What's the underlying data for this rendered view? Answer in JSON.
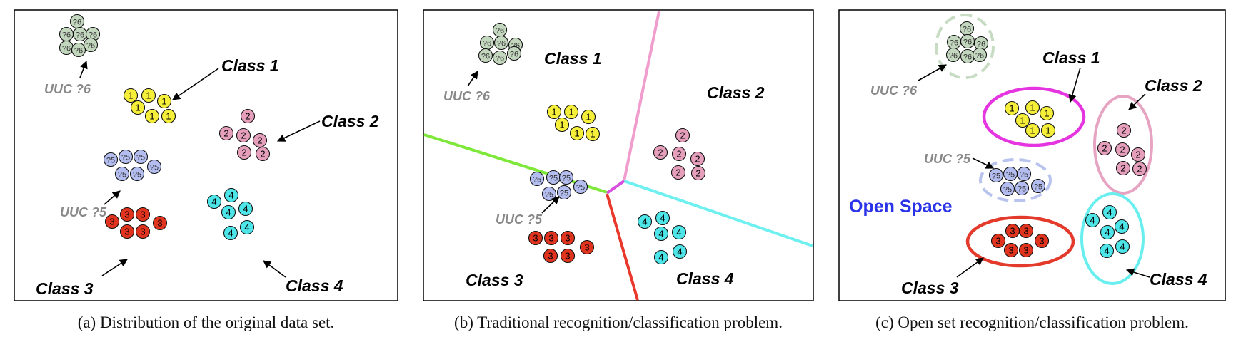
{
  "panels": [
    {
      "id": "a",
      "caption": "(a) Distribution of the original data set.",
      "labels": {
        "class1": "Class 1",
        "class2": "Class 2",
        "class3": "Class 3",
        "class4": "Class 4",
        "uuc6": "UUC ?6",
        "uuc5": "UUC ?5"
      }
    },
    {
      "id": "b",
      "caption": "(b) Traditional recognition/classification problem.",
      "labels": {
        "class1": "Class 1",
        "class2": "Class 2",
        "class3": "Class 3",
        "class4": "Class 4",
        "uuc6": "UUC ?6",
        "uuc5": "UUC ?5"
      }
    },
    {
      "id": "c",
      "caption": "(c) Open set recognition/classification problem.",
      "labels": {
        "class1": "Class 1",
        "class2": "Class 2",
        "class3": "Class 3",
        "class4": "Class 4",
        "uuc6": "UUC ?6",
        "uuc5": "UUC ?5",
        "open_space": "Open Space"
      }
    }
  ],
  "node_labels": {
    "c1": "1",
    "c2": "2",
    "c3": "3",
    "c4": "4",
    "u5": "?5",
    "u6": "?6"
  },
  "colors": {
    "c1_fill": "#f6ef3a",
    "c2_fill": "#e59fbb",
    "c3_fill": "#e0341f",
    "c4_fill": "#4de5e8",
    "u5_fill": "#b4bdf0",
    "u6_fill": "#c3d6be",
    "boundary_green": "#7ee83a",
    "boundary_pink": "#f09ccc",
    "boundary_cyan": "#6ff0f0",
    "boundary_red": "#e8392c",
    "boundary_magenta": "#d84ee0",
    "ellipse_c1": "#e535e0",
    "ellipse_c2": "#e6a3c2",
    "ellipse_c3": "#e33a2c",
    "ellipse_c4": "#68eeee",
    "ellipse_u5": "#b8c4ee",
    "ellipse_u6": "#c8dcc4",
    "open_space_text": "#2a33e8",
    "uuc_text": "#888888"
  }
}
